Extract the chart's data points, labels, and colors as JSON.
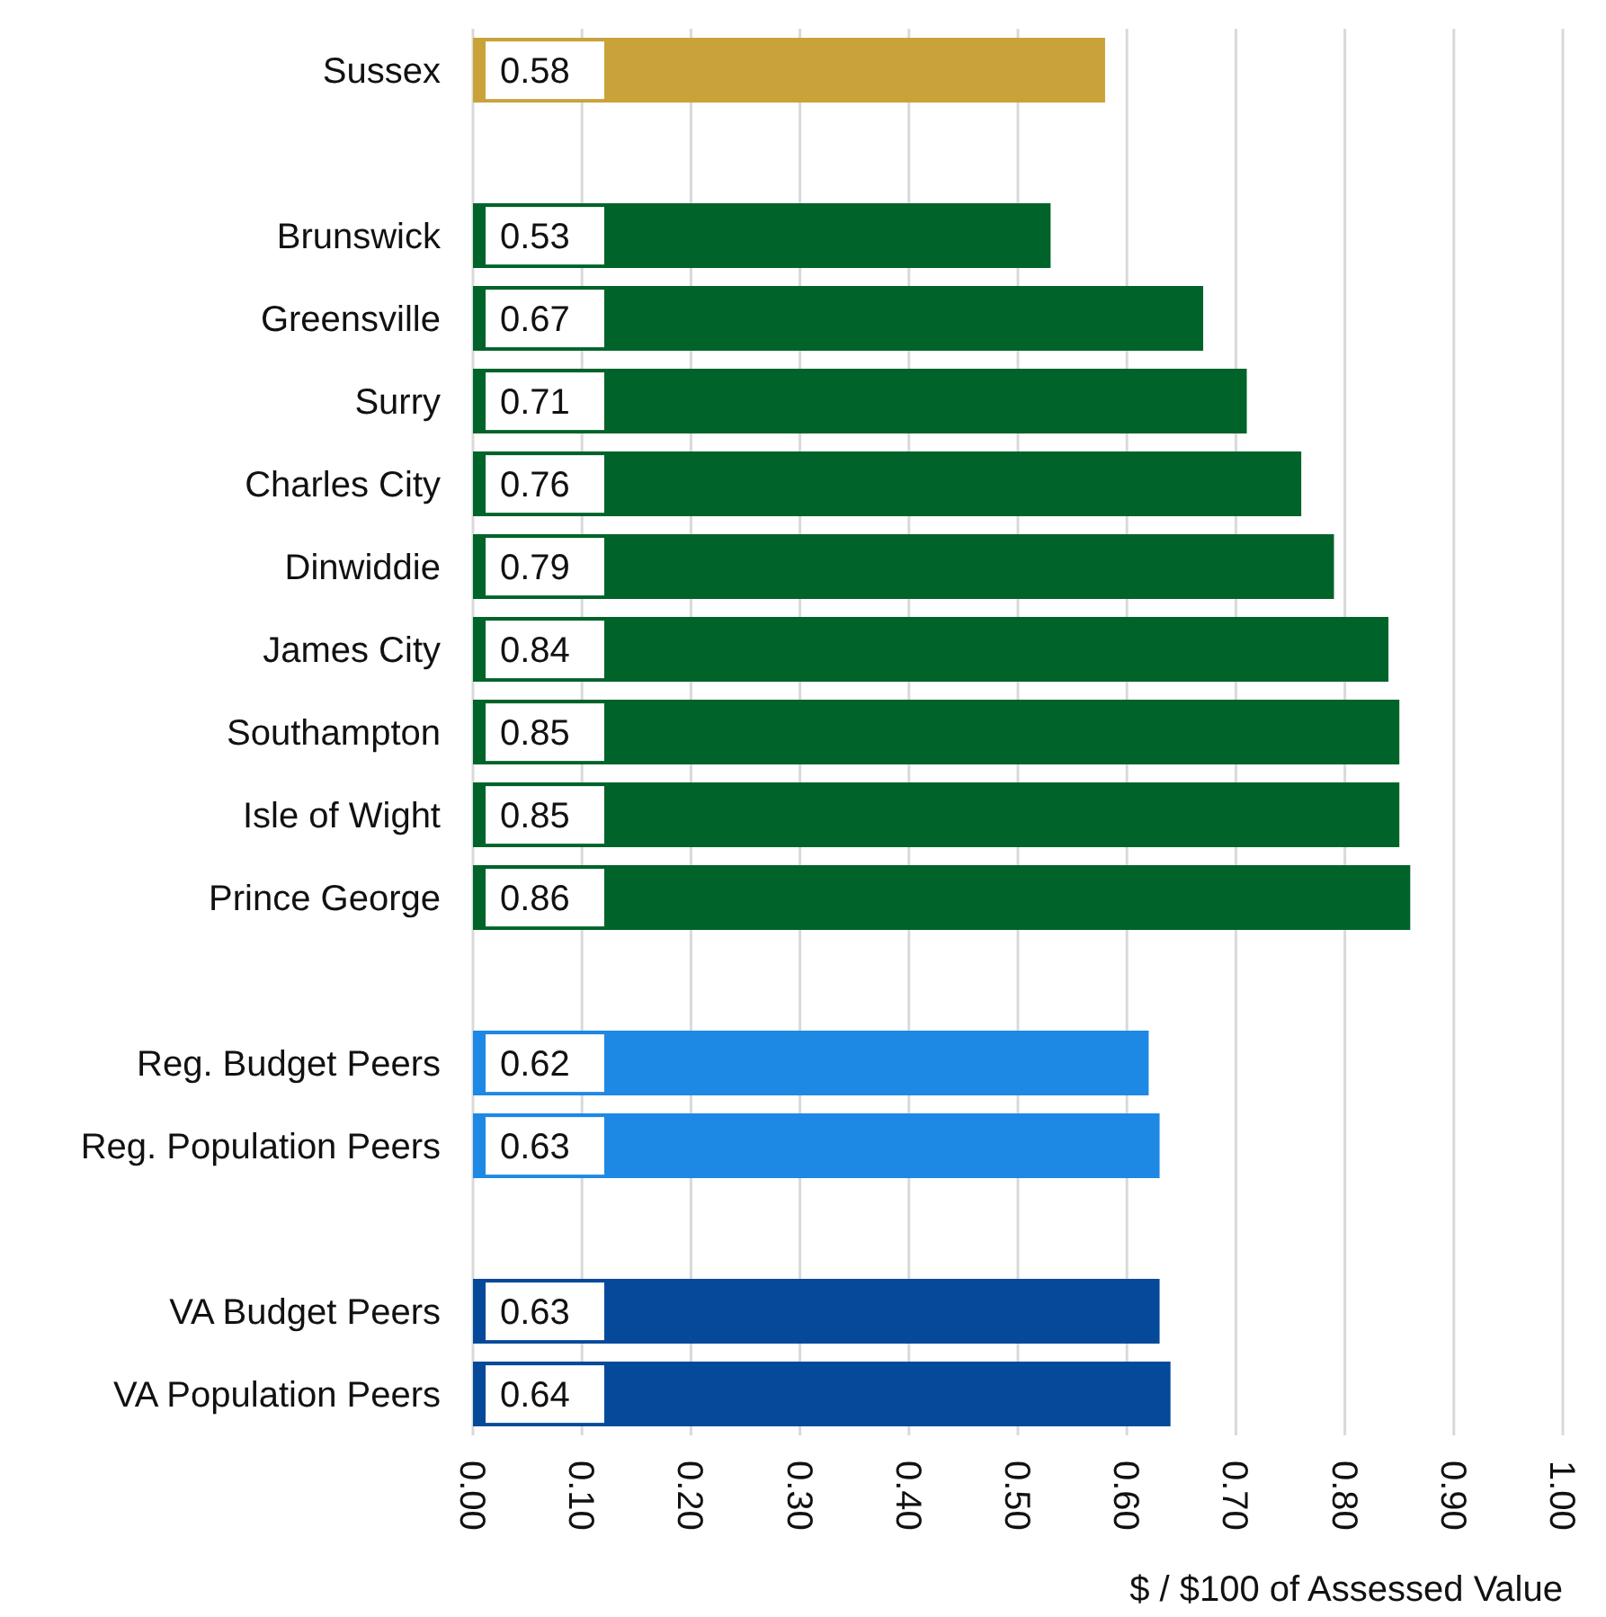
{
  "chart_data": {
    "type": "bar",
    "orientation": "horizontal",
    "xlabel": "$ / $100 of Assessed Value",
    "categories": [
      "Sussex",
      null,
      "Brunswick",
      "Greensville",
      "Surry",
      "Charles City",
      "Dinwiddie",
      "James City",
      "Southampton",
      "Isle of Wight",
      "Prince George",
      null,
      "Reg. Budget Peers",
      "Reg. Population Peers",
      null,
      "VA Budget Peers",
      "VA Population Peers"
    ],
    "values": [
      0.58,
      null,
      0.53,
      0.67,
      0.71,
      0.76,
      0.79,
      0.84,
      0.85,
      0.85,
      0.86,
      null,
      0.62,
      0.63,
      null,
      0.63,
      0.64
    ],
    "colors": [
      "#c9a33a",
      null,
      "#00632a",
      "#00632a",
      "#00632a",
      "#00632a",
      "#00632a",
      "#00632a",
      "#00632a",
      "#00632a",
      "#00632a",
      null,
      "#1e88e5",
      "#1e88e5",
      null,
      "#05499a",
      "#05499a"
    ],
    "xlim": [
      0,
      1
    ],
    "xticks": [
      {
        "value": 0,
        "label": "0.00"
      },
      {
        "value": 0.1,
        "label": "0.10"
      },
      {
        "value": 0.2,
        "label": "0.20"
      },
      {
        "value": 0.3,
        "label": "0.30"
      },
      {
        "value": 0.4,
        "label": "0.40"
      },
      {
        "value": 0.5,
        "label": "0.50"
      },
      {
        "value": 0.6,
        "label": "0.60"
      },
      {
        "value": 0.7,
        "label": "0.70"
      },
      {
        "value": 0.8,
        "label": "0.80"
      },
      {
        "value": 0.9,
        "label": "0.90"
      },
      {
        "value": 1,
        "label": "1.00"
      }
    ],
    "grid": "x",
    "data_labels": true,
    "legend": false
  }
}
